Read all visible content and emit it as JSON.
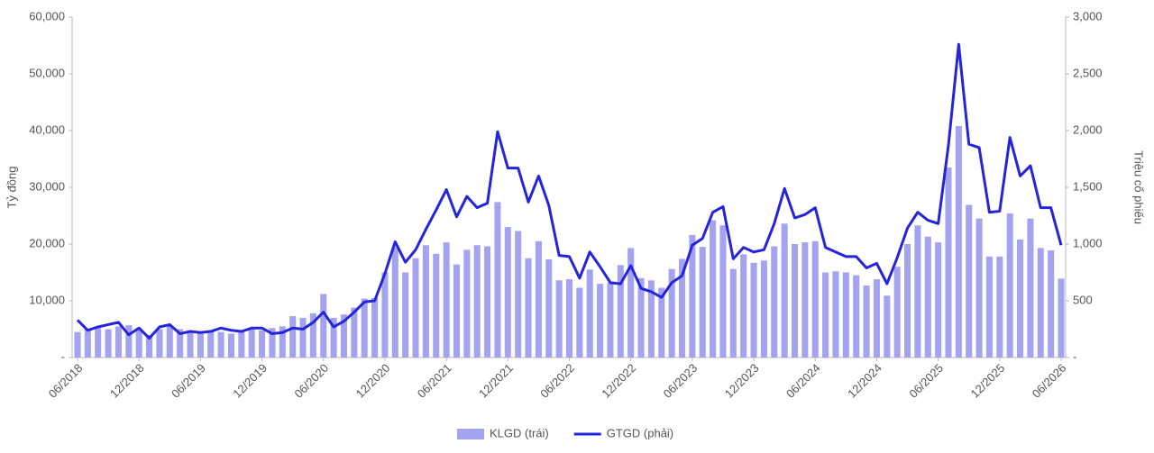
{
  "chart_data": {
    "type": "bar_line",
    "ylabel": "Tỷ đồng",
    "y2label": "Triệu cổ phiếu",
    "categories": [
      "06/2018",
      null,
      null,
      null,
      null,
      null,
      "12/2018",
      null,
      null,
      null,
      null,
      null,
      "06/2019",
      null,
      null,
      null,
      null,
      null,
      "12/2019",
      null,
      null,
      null,
      null,
      null,
      "06/2020",
      null,
      null,
      null,
      null,
      null,
      "12/2020",
      null,
      null,
      null,
      null,
      null,
      "06/2021",
      null,
      null,
      null,
      null,
      null,
      "12/2021",
      null,
      null,
      null,
      null,
      null,
      "06/2022",
      null,
      null,
      null,
      null,
      null,
      "12/2022",
      null,
      null,
      null,
      null,
      null,
      "06/2023",
      null,
      null,
      null,
      null,
      null,
      "12/2023",
      null,
      null,
      null,
      null,
      null,
      "06/2024",
      null,
      null,
      null,
      null,
      null,
      "12/2024",
      null,
      null,
      null,
      null,
      null,
      "06/2025",
      null,
      null,
      null,
      null,
      null,
      "12/2025",
      null,
      null,
      null,
      null,
      null,
      "06/2026"
    ],
    "series": [
      {
        "name": "KLGD (trái)",
        "color": "#a3a3f2",
        "kind": "bar",
        "axis": "y",
        "values": [
          4500,
          5000,
          5200,
          5000,
          5500,
          5700,
          4800,
          4000,
          5000,
          5500,
          5000,
          4500,
          4300,
          4800,
          4500,
          4200,
          4500,
          5000,
          4800,
          5200,
          5500,
          7300,
          7000,
          7800,
          11200,
          7000,
          7600,
          8800,
          10400,
          10500,
          15000,
          19500,
          15000,
          17500,
          19800,
          18300,
          20300,
          16400,
          19000,
          19800,
          19600,
          27400,
          23000,
          22300,
          17500,
          20500,
          17300,
          13600,
          13800,
          12300,
          15500,
          13000,
          13200,
          16300,
          19300,
          14000,
          13600,
          12300,
          15600,
          17400,
          21600,
          19500,
          24200,
          23300,
          15600,
          18200,
          16700,
          17100,
          19600,
          23600,
          20000,
          20300,
          20500,
          15000,
          15200,
          15000,
          14500,
          12700,
          13800,
          10900,
          16000,
          20000,
          23300,
          21300,
          20300,
          33500,
          40800,
          26900,
          24500,
          17800,
          17800,
          25400,
          20800,
          24500,
          19300,
          18900,
          13900
        ]
      },
      {
        "name": "GTGD (phải)",
        "color": "#2424dc",
        "kind": "line",
        "axis": "y2",
        "values": [
          330,
          240,
          270,
          290,
          310,
          200,
          260,
          170,
          270,
          290,
          210,
          230,
          220,
          230,
          260,
          240,
          230,
          260,
          260,
          210,
          220,
          260,
          250,
          310,
          400,
          270,
          320,
          400,
          490,
          500,
          740,
          1020,
          840,
          950,
          1130,
          1300,
          1480,
          1240,
          1420,
          1320,
          1360,
          1990,
          1670,
          1670,
          1370,
          1600,
          1340,
          900,
          890,
          700,
          930,
          800,
          660,
          650,
          810,
          610,
          580,
          530,
          660,
          720,
          990,
          1050,
          1280,
          1330,
          870,
          970,
          930,
          950,
          1180,
          1490,
          1230,
          1260,
          1320,
          970,
          930,
          890,
          890,
          790,
          830,
          650,
          880,
          1140,
          1280,
          1210,
          1180,
          1870,
          2760,
          1880,
          1850,
          1280,
          1290,
          1940,
          1600,
          1690,
          1320,
          1320,
          990
        ]
      }
    ],
    "ylim": [
      0,
      60000
    ],
    "yticks": [
      {
        "value": 0,
        "label": "-"
      },
      {
        "value": 10000,
        "label": "10,000"
      },
      {
        "value": 20000,
        "label": "20,000"
      },
      {
        "value": 30000,
        "label": "30,000"
      },
      {
        "value": 40000,
        "label": "40,000"
      },
      {
        "value": 50000,
        "label": "50,000"
      },
      {
        "value": 60000,
        "label": "60,000"
      }
    ],
    "y2lim": [
      0,
      3000
    ],
    "y2ticks": [
      {
        "value": 0,
        "label": "-"
      },
      500,
      {
        "value": 1000,
        "label": "1,000"
      },
      {
        "value": 1500,
        "label": "1,500"
      },
      {
        "value": 2000,
        "label": "2,000"
      },
      {
        "value": 2500,
        "label": "2,500"
      },
      {
        "value": 3000,
        "label": "3,000"
      }
    ],
    "legend": "bottom"
  }
}
